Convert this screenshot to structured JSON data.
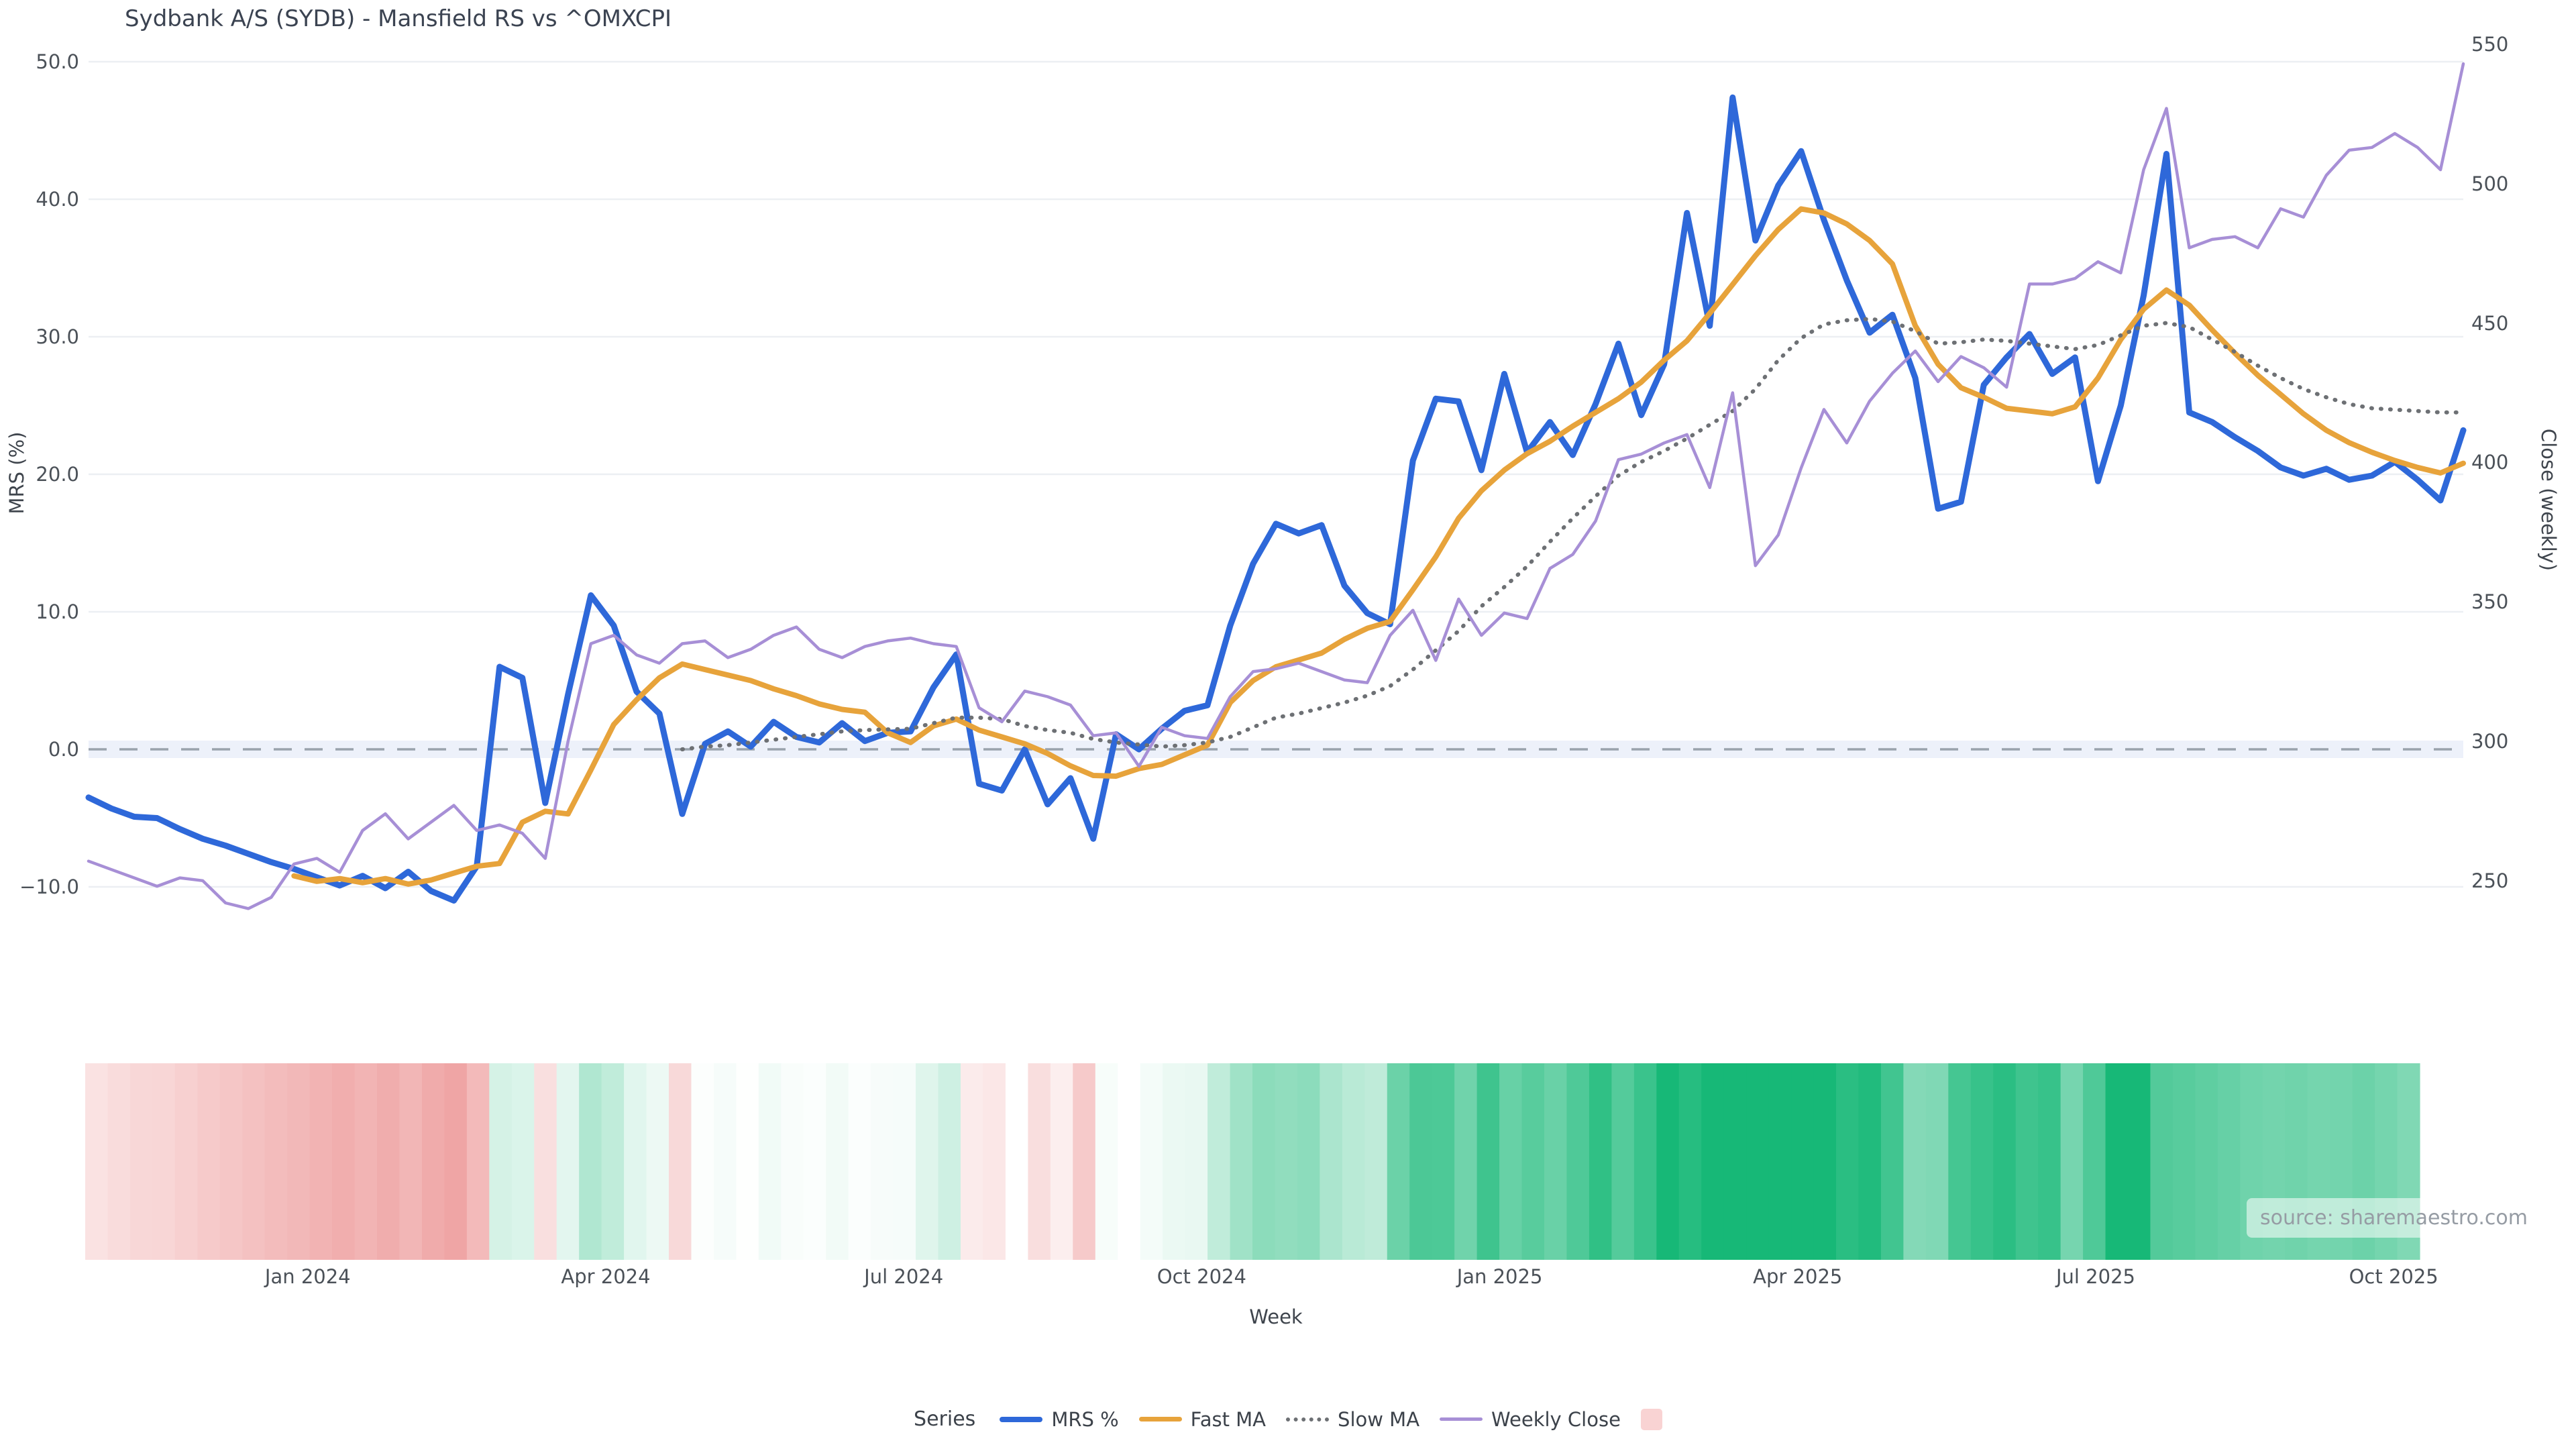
{
  "title": "Sydbank A/S (SYDB) - Mansfield RS vs ^OMXCPI",
  "source": "source: sharemaestro.com",
  "axes": {
    "left": {
      "title": "MRS (%)",
      "ticks": [
        "50.0",
        "40.0",
        "30.0",
        "20.0",
        "10.0",
        "0.0",
        "−10.0"
      ],
      "tick_values": [
        50,
        40,
        30,
        20,
        10,
        0,
        -10
      ]
    },
    "right": {
      "title": "Close (weekly)",
      "ticks": [
        "550",
        "500",
        "450",
        "400",
        "350",
        "300",
        "250"
      ],
      "tick_values": [
        550,
        500,
        450,
        400,
        350,
        300,
        250
      ]
    },
    "x": {
      "title": "Week",
      "ticks": [
        {
          "label": "Jan 2024",
          "week": 9.6
        },
        {
          "label": "Apr 2024",
          "week": 22.65
        },
        {
          "label": "Jul 2024",
          "week": 35.7
        },
        {
          "label": "Oct 2024",
          "week": 48.75
        },
        {
          "label": "Jan 2025",
          "week": 61.8
        },
        {
          "label": "Apr 2025",
          "week": 74.85
        },
        {
          "label": "Jul 2025",
          "week": 87.9
        },
        {
          "label": "Oct 2025",
          "week": 100.95
        }
      ]
    }
  },
  "legend": {
    "label": "Series",
    "items": [
      {
        "name": "MRS %",
        "swatch": "line",
        "color": "#2e68d9",
        "thickness": 8
      },
      {
        "name": "Fast MA",
        "swatch": "line",
        "color": "#e7a33b",
        "thickness": 7
      },
      {
        "name": "Slow MA",
        "swatch": "dotted",
        "color": "#6d7074",
        "thickness": 6
      },
      {
        "name": "Weekly Close",
        "swatch": "line",
        "color": "#a78fd6",
        "thickness": 5
      },
      {
        "name": "",
        "swatch": "square",
        "color": "#f9d3d3"
      }
    ]
  },
  "chart_data": {
    "type": "line",
    "x_unit": "week_index",
    "n_weeks": 105,
    "x_range_weeks": [
      0,
      104
    ],
    "left_axis_range": [
      -13,
      52
    ],
    "right_axis_range": [
      238,
      553
    ],
    "grid": true,
    "zero_line": {
      "value": 0,
      "axis": "left",
      "style": "dashed",
      "color": "#9aa3ac",
      "band_color": "#edf1fa"
    },
    "series": [
      {
        "name": "MRS %",
        "axis": "left",
        "color": "#2e68d9",
        "width": 9,
        "values": [
          -3.5,
          -4.3,
          -4.9,
          -5.0,
          -5.8,
          -6.5,
          -7.0,
          -7.6,
          -8.2,
          -8.7,
          -9.3,
          -9.9,
          -9.2,
          -10.1,
          -8.9,
          -10.3,
          -11.0,
          -8.5,
          6.0,
          5.2,
          -3.9,
          4.0,
          11.2,
          9.0,
          4.2,
          2.6,
          -4.7,
          0.4,
          1.3,
          0.2,
          2.0,
          0.9,
          0.5,
          1.9,
          0.6,
          1.2,
          1.3,
          4.5,
          6.9,
          -2.5,
          -3.0,
          0.0,
          -4.0,
          -2.1,
          -6.5,
          1.1,
          0.0,
          1.5,
          2.8,
          3.2,
          9.0,
          13.5,
          16.4,
          15.7,
          16.3,
          11.9,
          9.9,
          9.1,
          21.0,
          25.5,
          25.3,
          20.3,
          27.3,
          21.6,
          23.8,
          21.4,
          25.1,
          29.5,
          24.3,
          28.0,
          39.0,
          30.8,
          47.4,
          37.0,
          41.0,
          43.5,
          38.5,
          34.1,
          30.3,
          31.6,
          27.0,
          17.5,
          18.0,
          26.5,
          28.5,
          30.2,
          27.3,
          28.5,
          19.5,
          25.0,
          33.0,
          43.3,
          24.5,
          23.8,
          22.7,
          21.7,
          20.5,
          19.9,
          20.4,
          19.6,
          19.9,
          20.9,
          19.6,
          18.1,
          23.2
        ]
      },
      {
        "name": "Fast MA",
        "axis": "left",
        "color": "#e7a33b",
        "width": 8,
        "values": [
          null,
          null,
          null,
          null,
          null,
          null,
          null,
          null,
          null,
          -9.2,
          -9.6,
          -9.4,
          -9.7,
          -9.4,
          -9.8,
          -9.5,
          -9.0,
          -8.5,
          -8.3,
          -5.3,
          -4.5,
          -4.7,
          -1.5,
          1.8,
          3.6,
          5.2,
          6.2,
          5.8,
          5.4,
          5.0,
          4.4,
          3.9,
          3.3,
          2.9,
          2.7,
          1.2,
          0.5,
          1.7,
          2.2,
          1.4,
          0.9,
          0.4,
          -0.3,
          -1.2,
          -1.9,
          -1.95,
          -1.4,
          -1.1,
          -0.4,
          0.3,
          3.4,
          5.0,
          6.0,
          6.5,
          7.0,
          8.0,
          8.8,
          9.3,
          11.6,
          14.0,
          16.8,
          18.8,
          20.3,
          21.5,
          22.4,
          23.5,
          24.5,
          25.5,
          26.7,
          28.3,
          29.7,
          31.7,
          33.8,
          35.9,
          37.8,
          39.3,
          39.0,
          38.2,
          37.0,
          35.3,
          30.8,
          28.0,
          26.3,
          25.6,
          24.8,
          24.6,
          24.4,
          24.9,
          27.0,
          29.8,
          32.0,
          33.4,
          32.3,
          30.5,
          28.8,
          27.2,
          25.8,
          24.4,
          23.2,
          22.3,
          21.6,
          21.0,
          20.5,
          20.1,
          20.8
        ]
      },
      {
        "name": "Slow MA",
        "axis": "left",
        "color": "#6d7074",
        "width": 6,
        "dotted": true,
        "values": [
          null,
          null,
          null,
          null,
          null,
          null,
          null,
          null,
          null,
          null,
          null,
          null,
          null,
          null,
          null,
          null,
          null,
          null,
          null,
          null,
          null,
          null,
          null,
          null,
          null,
          null,
          0.0,
          0.2,
          0.3,
          0.5,
          0.7,
          0.9,
          1.1,
          1.3,
          1.4,
          1.45,
          1.5,
          1.9,
          2.3,
          2.3,
          2.2,
          1.7,
          1.4,
          1.2,
          0.75,
          0.5,
          0.35,
          0.2,
          0.3,
          0.5,
          0.9,
          1.6,
          2.3,
          2.6,
          3.0,
          3.4,
          3.9,
          4.6,
          5.8,
          7.2,
          8.6,
          10.4,
          11.8,
          13.3,
          15.1,
          16.8,
          18.4,
          19.9,
          20.9,
          21.7,
          22.6,
          23.6,
          24.6,
          26.2,
          28.3,
          29.9,
          30.9,
          31.2,
          31.3,
          31.1,
          30.4,
          29.5,
          29.6,
          29.8,
          29.7,
          29.5,
          29.3,
          29.1,
          29.4,
          30.1,
          30.8,
          31.0,
          30.7,
          29.8,
          28.9,
          27.9,
          27.0,
          26.2,
          25.6,
          25.1,
          24.8,
          24.7,
          24.6,
          24.5,
          24.5
        ]
      },
      {
        "name": "Weekly Close",
        "axis": "right",
        "color": "#a78fd6",
        "width": 4.5,
        "values": [
          257,
          254,
          251,
          248,
          251,
          250,
          242,
          240,
          244,
          256,
          258,
          253,
          268,
          274,
          265,
          271,
          277,
          268,
          270,
          267,
          258,
          300,
          335,
          338,
          331,
          328,
          335,
          336,
          330,
          333,
          338,
          341,
          333,
          330,
          334,
          336,
          337,
          335,
          334,
          312,
          307,
          318,
          316,
          313,
          302,
          303,
          291,
          305,
          302,
          301,
          316,
          325,
          326,
          328,
          325,
          322,
          321,
          338,
          347,
          329,
          351,
          338,
          346,
          344,
          362,
          367,
          379,
          401,
          403,
          407,
          410,
          391,
          425,
          363,
          374,
          398,
          419,
          407,
          422,
          432,
          440,
          429,
          438,
          434,
          427,
          464,
          464,
          466,
          472,
          468,
          505,
          527,
          477,
          480,
          481,
          477,
          491,
          488,
          503,
          512,
          513,
          518,
          513,
          505,
          543
        ]
      }
    ],
    "heatmap": {
      "description": "weekly strip colored by MRS % value",
      "source_series": "MRS %",
      "negative_color": "#e25c5c",
      "positive_color": "#17b877",
      "negative_full_scale": 20,
      "positive_full_scale": 33
    }
  }
}
